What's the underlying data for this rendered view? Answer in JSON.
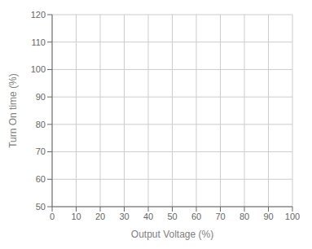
{
  "chart_data": {
    "type": "line",
    "xlabel": "Output Voltage (%)",
    "ylabel": "Turn On time (%)",
    "xlim": [
      0,
      100
    ],
    "ylim": [
      50,
      120
    ],
    "xticks": [
      0,
      10,
      20,
      30,
      40,
      50,
      60,
      70,
      80,
      90,
      100
    ],
    "yticks": [
      50,
      60,
      70,
      80,
      90,
      100,
      110,
      120
    ],
    "grid": true
  }
}
